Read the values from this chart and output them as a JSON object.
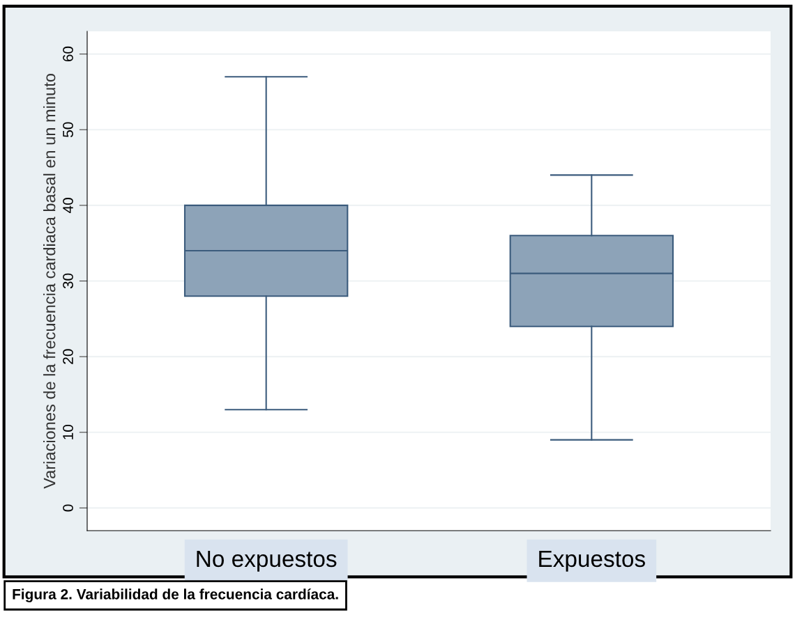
{
  "chart_data": {
    "type": "box",
    "ylabel": "Variaciones de la frecuencia cardiaca basal en un minuto",
    "categories": [
      "No expuestos",
      "Expuestos"
    ],
    "boxes": [
      {
        "low": 13,
        "q1": 28,
        "median": 34,
        "q3": 40,
        "high": 57
      },
      {
        "low": 9,
        "q1": 24,
        "median": 31,
        "q3": 36,
        "high": 44
      }
    ],
    "color": "#8da3b8",
    "ylim": [
      -3,
      63
    ],
    "yticks": [
      0,
      10,
      20,
      30,
      40,
      50,
      60
    ],
    "grid": "y",
    "annotations": [
      "Figura 2. Variabilidad de la frecuencia cardíaca."
    ]
  }
}
